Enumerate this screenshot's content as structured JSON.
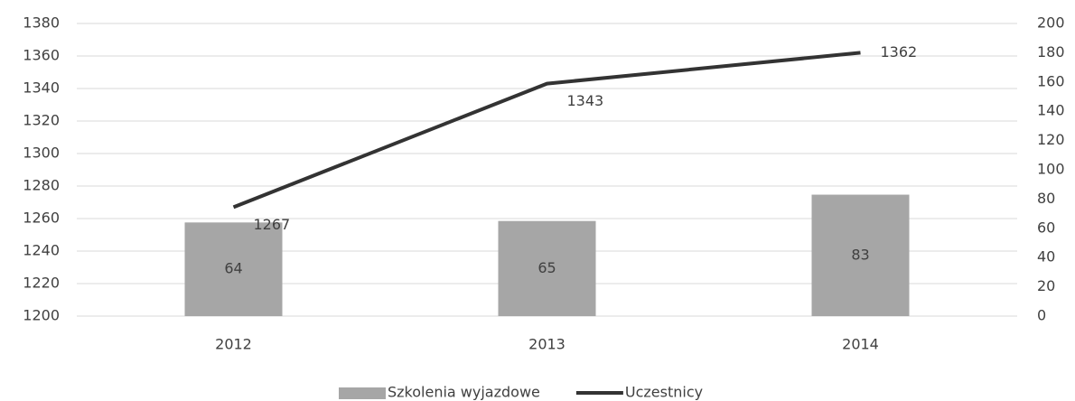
{
  "chart_data": {
    "type": "bar_line",
    "categories": [
      "2012",
      "2013",
      "2014"
    ],
    "series": [
      {
        "name": "Szkolenia wyjazdowe",
        "type": "bar",
        "axis": "y2",
        "color": "#a6a6a6",
        "values": [
          64,
          65,
          83
        ]
      },
      {
        "name": "Uczestnicy",
        "type": "line",
        "axis": "y",
        "color": "#333333",
        "values": [
          1267,
          1343,
          1362
        ]
      }
    ],
    "ylim": [
      1200,
      1380
    ],
    "yticks": [
      1200,
      1220,
      1240,
      1260,
      1280,
      1300,
      1320,
      1340,
      1360,
      1380
    ],
    "y2lim": [
      0,
      200
    ],
    "y2ticks": [
      0,
      20,
      40,
      60,
      80,
      100,
      120,
      140,
      160,
      180,
      200
    ],
    "grid": true,
    "legend": "bottom"
  }
}
